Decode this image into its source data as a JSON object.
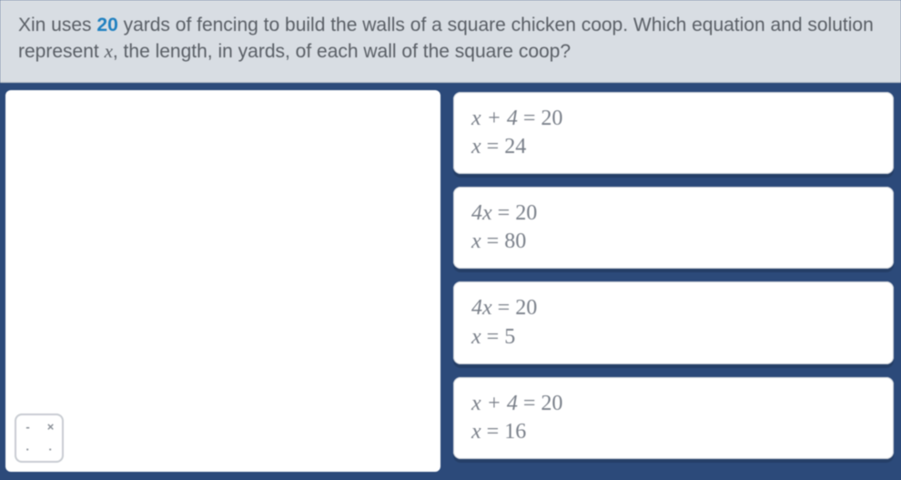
{
  "colors": {
    "page_bg": "#2c4a7a",
    "header_bg": "#d8dde3",
    "header_text": "#5a5f66",
    "highlight": "#2080c0",
    "panel_bg": "#ffffff",
    "option_text": "#7a808a",
    "tool_border": "#c8ccd2"
  },
  "question": {
    "pre": "Xin uses ",
    "highlight": "20",
    "mid1": " yards of fencing to build the walls of a square chicken coop. Which equation and solution represent ",
    "var": "x",
    "mid2": ", the length, in yards, of each wall of the square coop?"
  },
  "options": [
    {
      "line1_lhs": "x + 4",
      "line1_rhs": "20",
      "line2_lhs": "x",
      "line2_rhs": "24"
    },
    {
      "line1_lhs": "4x",
      "line1_rhs": "20",
      "line2_lhs": "x",
      "line2_rhs": "80"
    },
    {
      "line1_lhs": "4x",
      "line1_rhs": "20",
      "line2_lhs": "x",
      "line2_rhs": "5"
    },
    {
      "line1_lhs": "x + 4",
      "line1_rhs": "20",
      "line2_lhs": "x",
      "line2_rhs": "16"
    }
  ],
  "tool": {
    "tl": "-",
    "tr": "×",
    "bl": "·",
    "br": "·"
  }
}
